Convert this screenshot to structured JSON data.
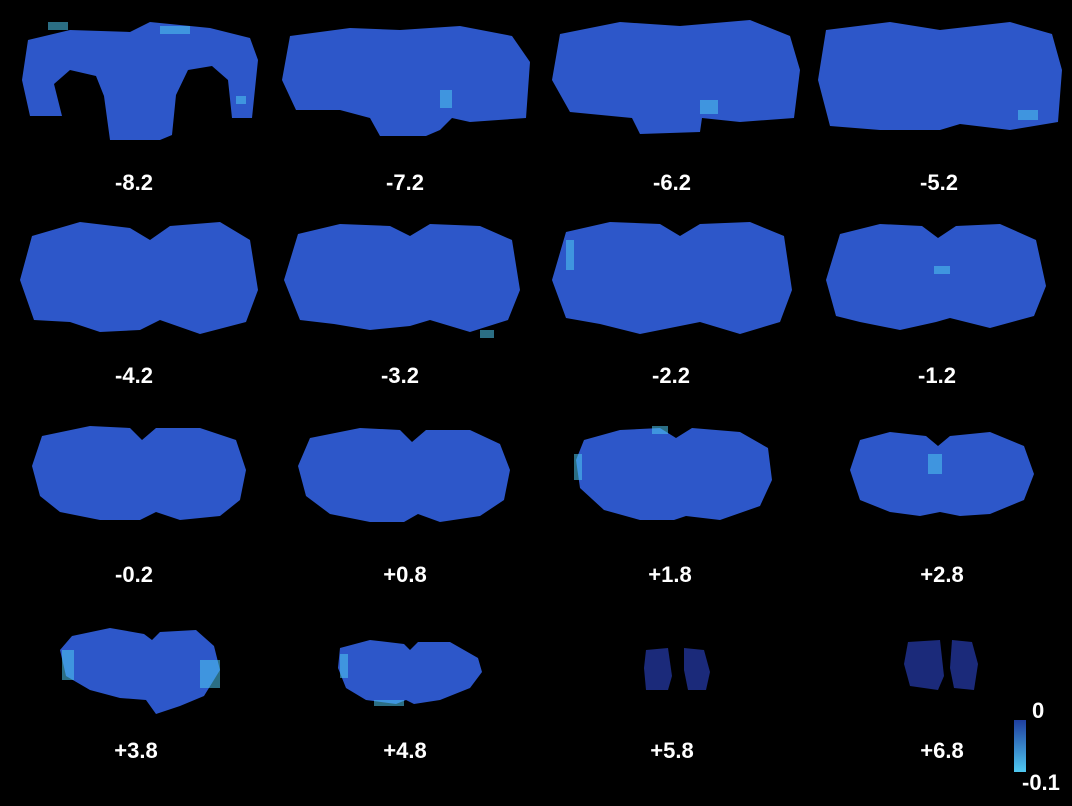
{
  "figure": {
    "background": "#000000",
    "slices": [
      {
        "label": "-8.2",
        "shape": "posterior-ring"
      },
      {
        "label": "-7.2",
        "shape": "posterior-notched"
      },
      {
        "label": "-6.2",
        "shape": "wide-notched"
      },
      {
        "label": "-5.2",
        "shape": "wide"
      },
      {
        "label": "-4.2",
        "shape": "coronal"
      },
      {
        "label": "-3.2",
        "shape": "coronal"
      },
      {
        "label": "-2.2",
        "shape": "coronal"
      },
      {
        "label": "-1.2",
        "shape": "coronal"
      },
      {
        "label": "-0.2",
        "shape": "coronal-small"
      },
      {
        "label": "+0.8",
        "shape": "coronal-small"
      },
      {
        "label": "+1.8",
        "shape": "coronal-split"
      },
      {
        "label": "+2.8",
        "shape": "coronal-split"
      },
      {
        "label": "+3.8",
        "shape": "anterior-wide"
      },
      {
        "label": "+4.8",
        "shape": "anterior-small"
      },
      {
        "label": "+5.8",
        "shape": "olfactory-pair"
      },
      {
        "label": "+6.8",
        "shape": "olfactory-pair"
      }
    ],
    "colorbar": {
      "max_label": "0",
      "min_label": "-0.1",
      "max_value": 0,
      "min_value": -0.1,
      "color_top": "#1f3fa0",
      "color_bottom": "#4fc8f0"
    },
    "slice_fill": "#2d57c9",
    "slice_fill_dark": "#1b2a7a",
    "highlight_color": "#4fc8f0"
  }
}
